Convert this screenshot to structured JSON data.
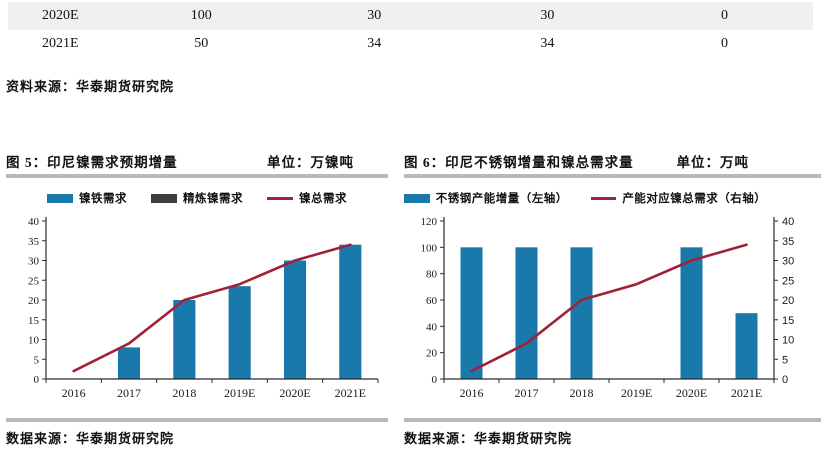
{
  "table": {
    "rows": [
      {
        "cells": [
          "2020E",
          "100",
          "30",
          "30",
          "0"
        ]
      },
      {
        "cells": [
          "2021E",
          "50",
          "34",
          "34",
          "0"
        ]
      }
    ],
    "source": "资料来源：华泰期货研究院"
  },
  "figures": {
    "fig5": {
      "title": "图 5：印尼镍需求预期增量",
      "unit": "单位：万镍吨",
      "source": "数据来源：华泰期货研究院"
    },
    "fig6": {
      "title": "图 6：印尼不锈钢增量和镍总需求量",
      "unit": "单位：万吨",
      "source": "数据来源：华泰期货研究院"
    }
  },
  "colors": {
    "bar_blue": "#1a79ab",
    "bar_dark": "#3d3d3d",
    "line_red": "#a02238",
    "axis": "#2b2b2b",
    "divider": "#b9b9b9",
    "row_shade": "#f0f0f0"
  },
  "chart_data": [
    {
      "type": "bar",
      "title": "印尼镍需求预期增量",
      "unit": "万镍吨",
      "categories": [
        "2016",
        "2017",
        "2018",
        "2019E",
        "2020E",
        "2021E"
      ],
      "series": [
        {
          "name": "镍铁需求",
          "type": "bar",
          "axis": "left",
          "color": "#1a79ab",
          "values": [
            0,
            8,
            20,
            23.5,
            30,
            34
          ]
        },
        {
          "name": "精炼镍需求",
          "type": "bar",
          "axis": "left",
          "color": "#3d3d3d",
          "values": [
            0,
            0,
            0,
            0,
            0,
            0
          ]
        },
        {
          "name": "镍总需求",
          "type": "line",
          "axis": "left",
          "color": "#a02238",
          "values": [
            2,
            9,
            20,
            24,
            30,
            34
          ]
        }
      ],
      "left_axis": {
        "min": 0,
        "max": 40,
        "step": 5
      },
      "right_axis": null,
      "grid": false,
      "legend_position": "top"
    },
    {
      "type": "bar",
      "title": "印尼不锈钢增量和镍总需求量",
      "unit": "万吨",
      "categories": [
        "2016",
        "2017",
        "2018",
        "2019E",
        "2020E",
        "2021E"
      ],
      "series": [
        {
          "name": "不锈钢产能增量（左轴）",
          "type": "bar",
          "axis": "left",
          "color": "#1a79ab",
          "values": [
            100,
            100,
            100,
            0,
            100,
            50
          ]
        },
        {
          "name": "产能对应镍总需求（右轴）",
          "type": "line",
          "axis": "right",
          "color": "#a02238",
          "values": [
            2,
            9,
            20,
            24,
            30,
            34
          ]
        }
      ],
      "left_axis": {
        "min": 0,
        "max": 120,
        "step": 20
      },
      "right_axis": {
        "min": 0,
        "max": 40,
        "step": 5
      },
      "grid": false,
      "legend_position": "top"
    }
  ]
}
